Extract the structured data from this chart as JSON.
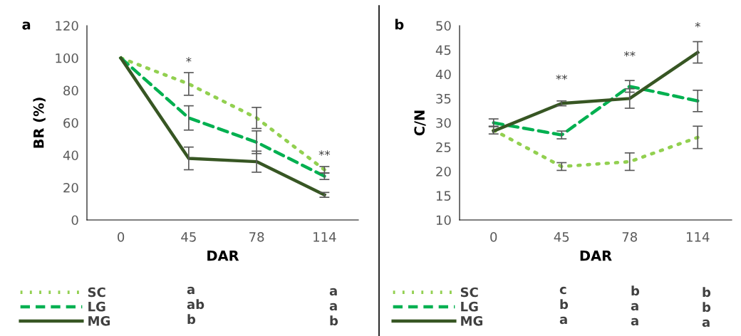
{
  "chart_data": [
    {
      "type": "line",
      "title": "a",
      "xlabel": "DAR",
      "ylabel": "BR (%)",
      "categories": [
        "0",
        "45",
        "78",
        "114"
      ],
      "ylim": [
        0,
        120
      ],
      "yticks": [
        0,
        20,
        40,
        60,
        80,
        100,
        120
      ],
      "grid": false,
      "legend": "bottom",
      "marker": "none",
      "series": [
        {
          "name": "SC",
          "color": "#92d050",
          "line_style": "dotted",
          "values": [
            100,
            84,
            63,
            31
          ],
          "errors": [
            null,
            7,
            6.5,
            2
          ]
        },
        {
          "name": "LG",
          "color": "#00b050",
          "line_style": "dashed",
          "values": [
            100,
            63,
            48,
            27
          ],
          "errors": [
            null,
            7.5,
            7,
            2
          ]
        },
        {
          "name": "MG",
          "color": "#375623",
          "line_style": "solid",
          "values": [
            100,
            38,
            36,
            15.5
          ],
          "errors": [
            null,
            7,
            6.5,
            1.5
          ]
        }
      ],
      "annotations": [
        "*",
        "**",
        "a",
        "a",
        "ab",
        "a",
        "b",
        "b"
      ]
    },
    {
      "type": "line",
      "title": "b",
      "xlabel": "DAR",
      "ylabel": "C/N",
      "categories": [
        "0",
        "45",
        "78",
        "114"
      ],
      "ylim": [
        10,
        50
      ],
      "yticks": [
        10,
        15,
        20,
        25,
        30,
        35,
        40,
        45,
        50
      ],
      "grid": false,
      "legend": "bottom",
      "marker": "none",
      "series": [
        {
          "name": "SC",
          "color": "#92d050",
          "line_style": "dotted",
          "values": [
            28.5,
            21,
            22,
            27
          ],
          "errors": [
            0.8,
            0.8,
            1.8,
            2.3
          ]
        },
        {
          "name": "LG",
          "color": "#00b050",
          "line_style": "dashed",
          "values": [
            30,
            27.5,
            37.5,
            34.5
          ],
          "errors": [
            0.8,
            0.8,
            1.2,
            2.2
          ]
        },
        {
          "name": "MG",
          "color": "#375623",
          "line_style": "solid",
          "values": [
            28.3,
            34,
            35,
            44.5
          ],
          "errors": [
            null,
            0.5,
            2,
            2.2
          ]
        }
      ],
      "annotations": [
        "**",
        "**",
        "*",
        "c",
        "b",
        "b",
        "b",
        "a",
        "b",
        "a",
        "a",
        "a"
      ]
    }
  ]
}
